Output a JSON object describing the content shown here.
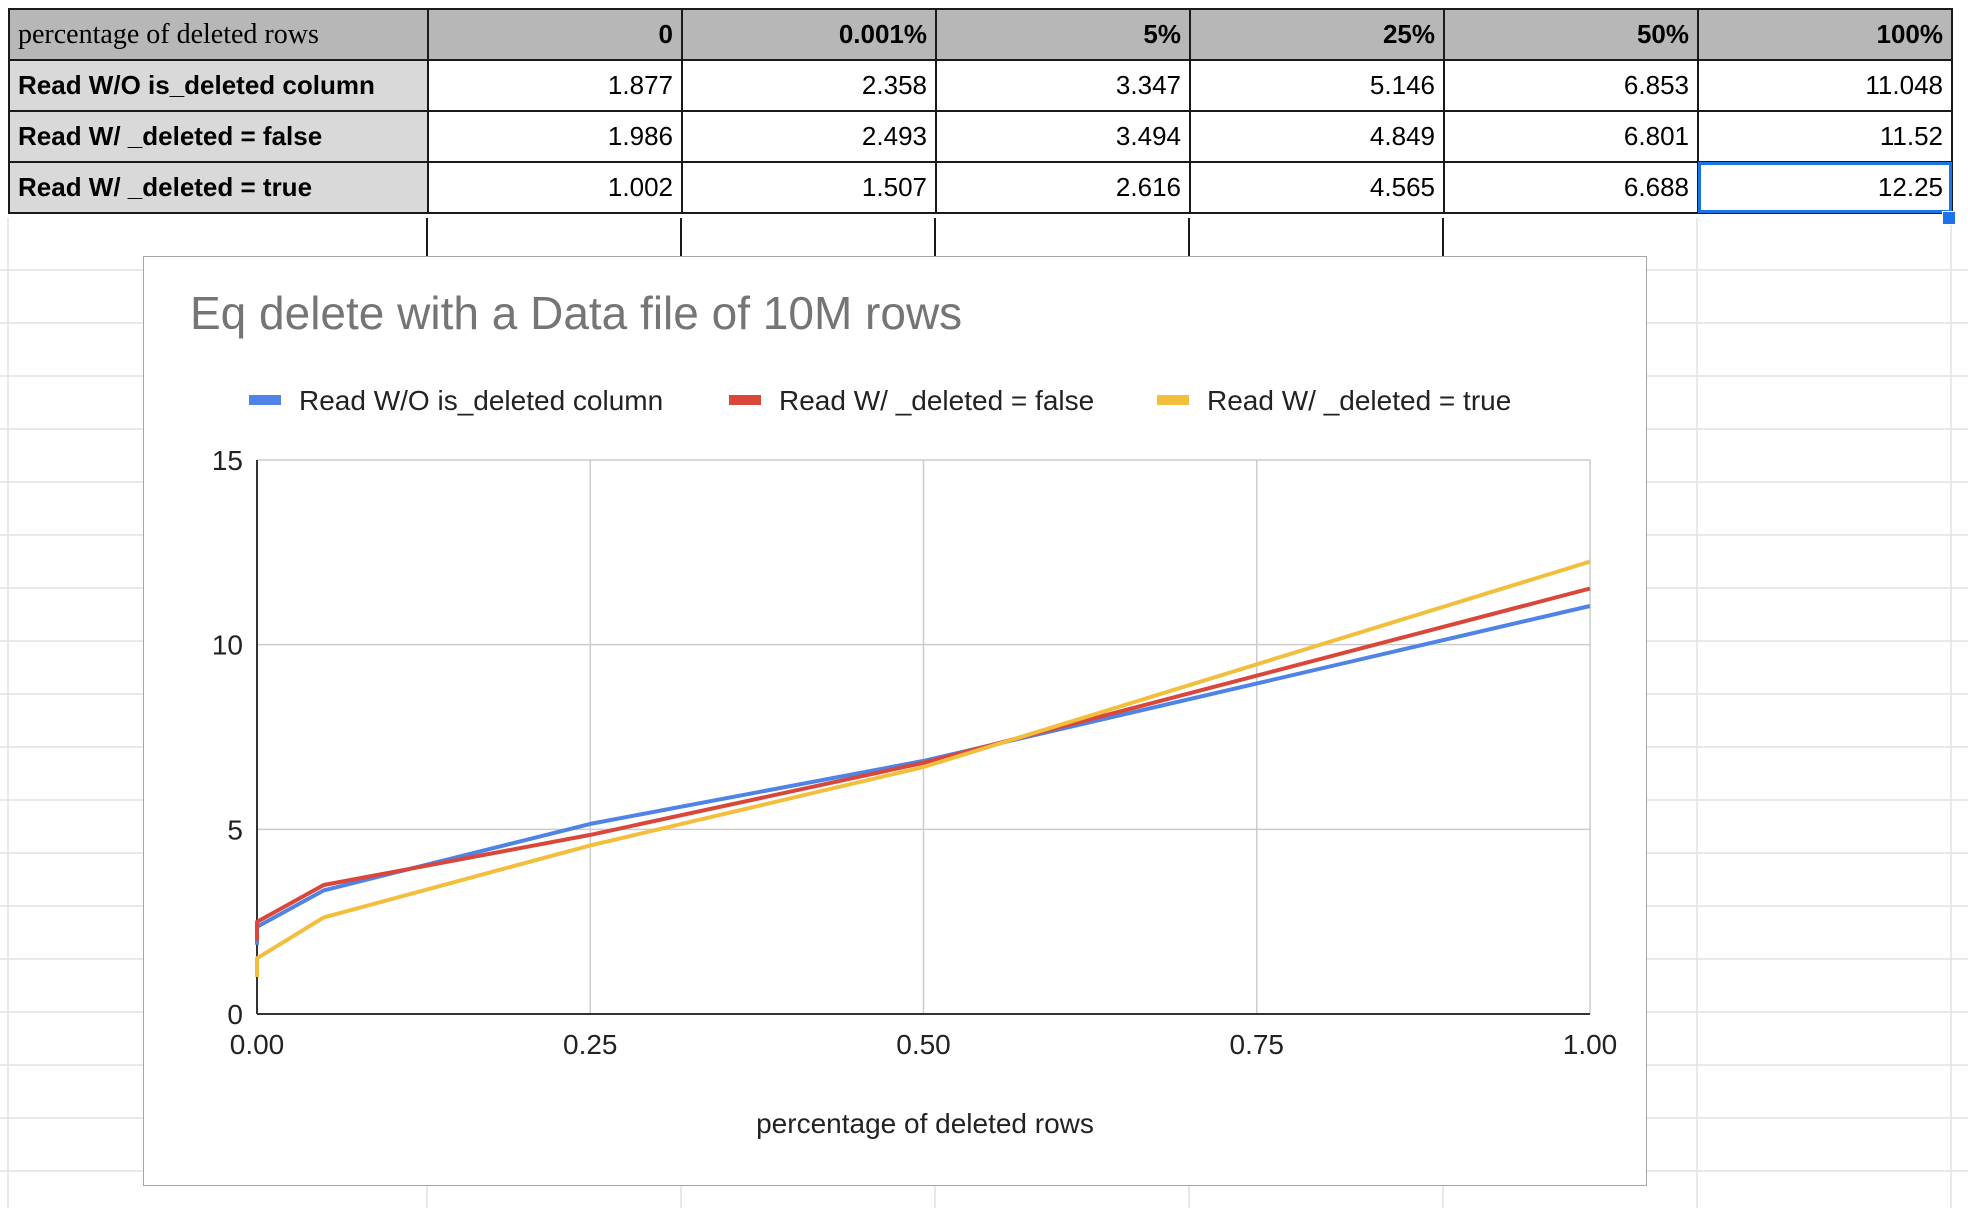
{
  "sheet": {
    "header": [
      "percentage of deleted rows",
      "0",
      "0.001%",
      "5%",
      "25%",
      "50%",
      "100%"
    ],
    "rows": [
      {
        "label": "Read W/O is_deleted column",
        "values": [
          "1.877",
          "2.358",
          "3.347",
          "5.146",
          "6.853",
          "11.048"
        ]
      },
      {
        "label": "Read W/ _deleted = false",
        "values": [
          "1.986",
          "2.493",
          "3.494",
          "4.849",
          "6.801",
          "11.52"
        ]
      },
      {
        "label": "Read W/ _deleted = true",
        "values": [
          "1.002",
          "1.507",
          "2.616",
          "4.565",
          "6.688",
          "12.25"
        ]
      }
    ]
  },
  "chart_data": {
    "type": "line",
    "title": "Eq delete with a Data file of 10M rows",
    "xlabel": "percentage of deleted rows",
    "ylabel": "",
    "x": [
      0,
      1e-05,
      0.05,
      0.25,
      0.5,
      1.0
    ],
    "series": [
      {
        "name": "Read W/O is_deleted column",
        "color": "#4f83e6",
        "values": [
          1.877,
          2.358,
          3.347,
          5.146,
          6.853,
          11.048
        ]
      },
      {
        "name": "Read W/ _deleted = false",
        "color": "#d9473b",
        "values": [
          1.986,
          2.493,
          3.494,
          4.849,
          6.801,
          11.52
        ]
      },
      {
        "name": "Read W/ _deleted = true",
        "color": "#f2be3c",
        "values": [
          1.002,
          1.507,
          2.616,
          4.565,
          6.688,
          12.25
        ]
      }
    ],
    "xlim": [
      0,
      1
    ],
    "ylim": [
      0,
      15
    ],
    "xticks": [
      0,
      0.25,
      0.5,
      0.75,
      1.0
    ],
    "xtick_labels": [
      "0.00",
      "0.25",
      "0.50",
      "0.75",
      "1.00"
    ],
    "yticks": [
      0,
      5,
      10,
      15
    ],
    "ytick_labels": [
      "0",
      "5",
      "10",
      "15"
    ],
    "grid": true,
    "legend_position": "top"
  }
}
